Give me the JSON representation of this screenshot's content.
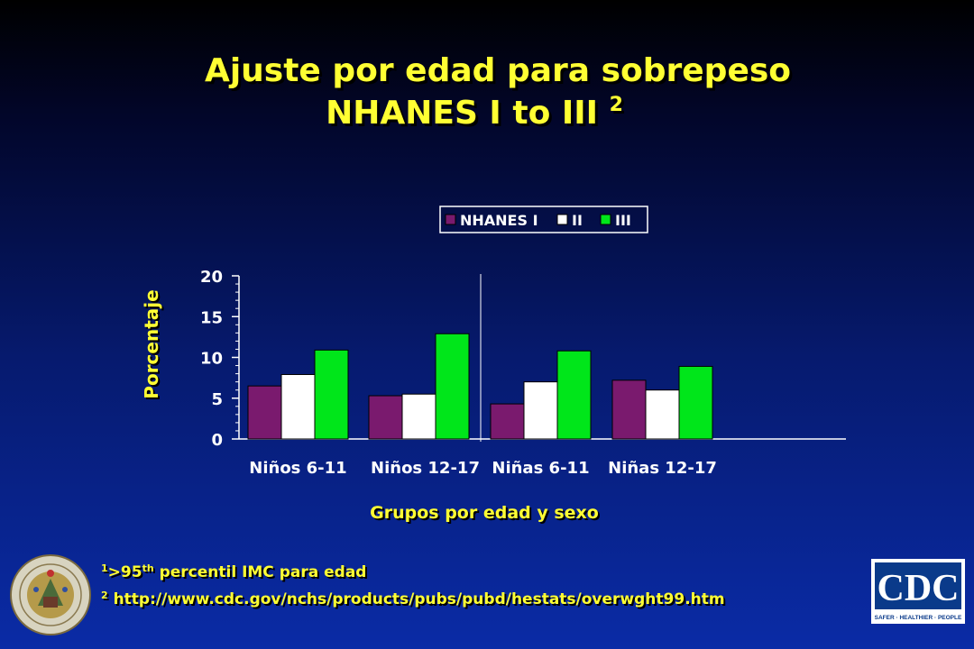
{
  "slide": {
    "title_line1": "Ajuste por edad para sobrepeso",
    "title_line2": "NHANES I to III",
    "title_sup": "2"
  },
  "chart_data": {
    "type": "bar",
    "categories": [
      "Niños 6-11",
      "Niños 12-17",
      "Niñas 6-11",
      "Niñas 12-17"
    ],
    "series": [
      {
        "name": "NHANES I",
        "values": [
          6.5,
          5.3,
          4.3,
          7.2
        ],
        "color": "#7a1a6e"
      },
      {
        "name": "II",
        "values": [
          7.9,
          5.5,
          7.0,
          6.0
        ],
        "color": "#ffffff"
      },
      {
        "name": "III",
        "values": [
          10.9,
          12.9,
          10.8,
          8.9
        ],
        "color": "#00e61a"
      }
    ],
    "ylabel": "Porcentaje",
    "xlabel": "Grupos por edad y sexo",
    "ylim": [
      0,
      20
    ],
    "yticks": [
      0,
      5,
      10,
      15,
      20
    ],
    "grid": false,
    "legend_position": "top-right"
  },
  "footnotes": {
    "note1_sup": "1",
    "note1_text": ">95",
    "note1_th": "th",
    "note1_rest": " percentil IMC para edad",
    "note2_sup": "2",
    "note2_text": " http://www.cdc.gov/nchs/products/pubs/pubd/hestats/overwght99.htm"
  },
  "logos": {
    "cdc_text": "CDC",
    "cdc_tagline": "SAFER · HEALTHIER · PEOPLE"
  }
}
